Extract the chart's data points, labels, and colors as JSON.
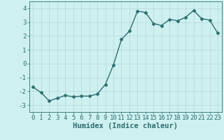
{
  "x": [
    0,
    1,
    2,
    3,
    4,
    5,
    6,
    7,
    8,
    9,
    10,
    11,
    12,
    13,
    14,
    15,
    16,
    17,
    18,
    19,
    20,
    21,
    22,
    23
  ],
  "y": [
    -1.7,
    -2.1,
    -2.7,
    -2.5,
    -2.3,
    -2.4,
    -2.35,
    -2.35,
    -2.2,
    -1.5,
    -0.1,
    1.75,
    2.35,
    3.8,
    3.7,
    2.9,
    2.75,
    3.2,
    3.1,
    3.35,
    3.85,
    3.25,
    3.15,
    2.2
  ],
  "line_color": "#2d6e6e",
  "bg_color": "#cff0f0",
  "grid_color": "#b0d8d8",
  "xlabel": "Humidex (Indice chaleur)",
  "ylim": [
    -3.5,
    4.5
  ],
  "xlim": [
    -0.5,
    23.5
  ],
  "yticks": [
    -3,
    -2,
    -1,
    0,
    1,
    2,
    3,
    4
  ],
  "xticks": [
    0,
    1,
    2,
    3,
    4,
    5,
    6,
    7,
    8,
    9,
    10,
    11,
    12,
    13,
    14,
    15,
    16,
    17,
    18,
    19,
    20,
    21,
    22,
    23
  ],
  "marker": "D",
  "marker_size": 2.5,
  "line_width": 1.0,
  "xlabel_fontsize": 7.5,
  "tick_fontsize": 6.5
}
